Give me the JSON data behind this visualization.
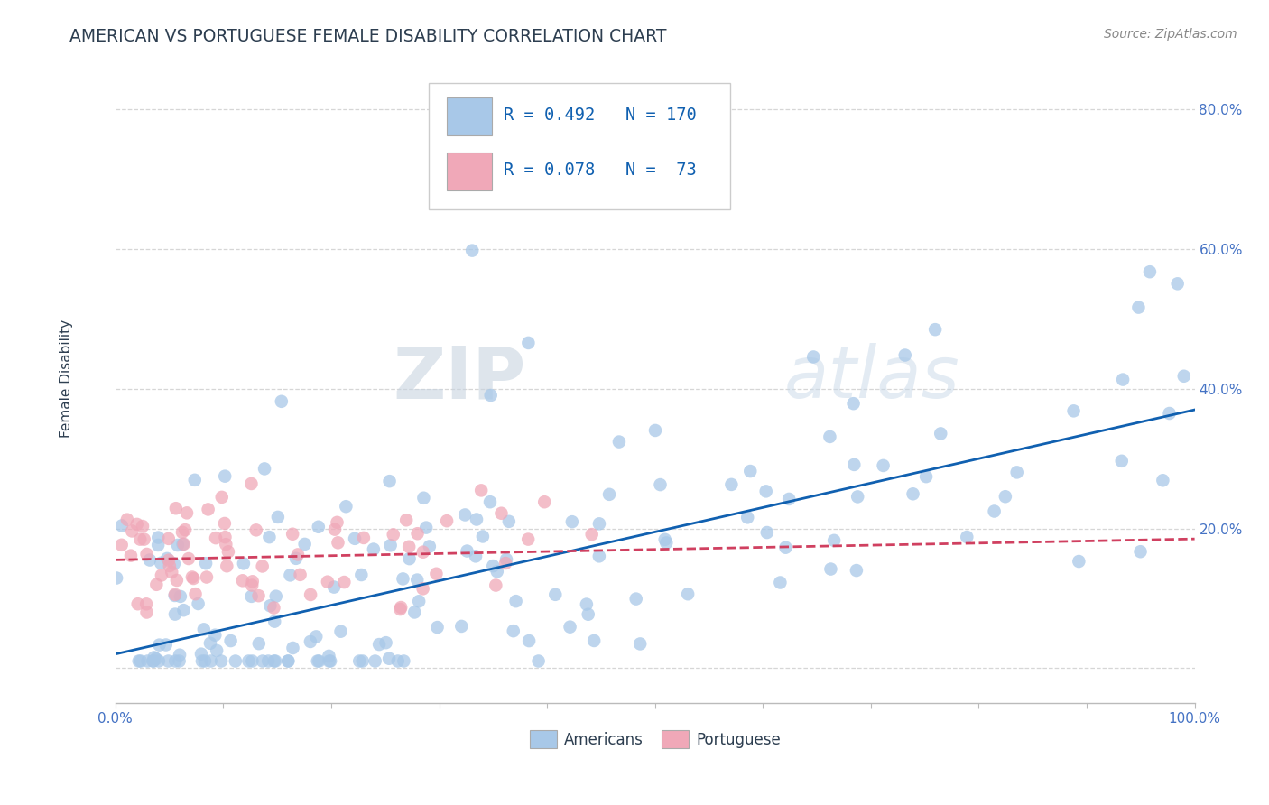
{
  "title": "AMERICAN VS PORTUGUESE FEMALE DISABILITY CORRELATION CHART",
  "source": "Source: ZipAtlas.com",
  "ylabel": "Female Disability",
  "xlim": [
    0.0,
    1.0
  ],
  "ylim": [
    -0.05,
    0.88
  ],
  "xtick_positions": [
    0.0,
    0.1,
    0.2,
    0.3,
    0.4,
    0.5,
    0.6,
    0.7,
    0.8,
    0.9,
    1.0
  ],
  "xticklabels": [
    "0.0%",
    "",
    "",
    "",
    "",
    "",
    "",
    "",
    "",
    "",
    "100.0%"
  ],
  "ytick_positions": [
    0.0,
    0.2,
    0.4,
    0.6,
    0.8
  ],
  "yticklabels": [
    "",
    "20.0%",
    "40.0%",
    "60.0%",
    "80.0%"
  ],
  "american_color": "#a8c8e8",
  "portuguese_color": "#f0a8b8",
  "american_line_color": "#1060b0",
  "portuguese_line_color": "#d04060",
  "R_american": 0.492,
  "N_american": 170,
  "R_portuguese": 0.078,
  "N_portuguese": 73,
  "legend_label_american": "Americans",
  "legend_label_portuguese": "Portuguese",
  "watermark_zip": "ZIP",
  "watermark_atlas": "atlas",
  "background_color": "#ffffff",
  "grid_color": "#cccccc",
  "title_color": "#2d3e50",
  "axis_label_color": "#4472c4",
  "source_color": "#888888",
  "am_line_start": 0.02,
  "am_line_end": 0.37,
  "pt_line_start": 0.155,
  "pt_line_end": 0.185
}
